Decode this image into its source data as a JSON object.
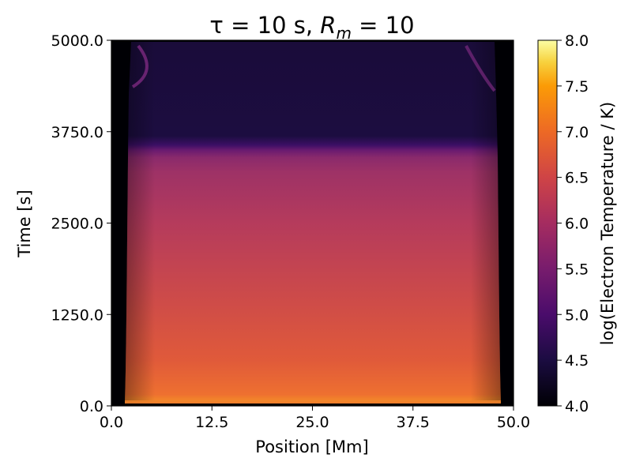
{
  "chart_data": {
    "type": "heatmap",
    "title": "τ = 10 s, R_m = 10",
    "title_parts": {
      "lead": "τ = 10 s, ",
      "var": "R",
      "sub": "m",
      "tail": " = 10"
    },
    "xlabel": "Position [Mm]",
    "ylabel": "Time [s]",
    "xlim": [
      0.0,
      50.0
    ],
    "ylim": [
      0.0,
      5000.0
    ],
    "x_ticks": [
      "0.0",
      "12.5",
      "25.0",
      "37.5",
      "50.0"
    ],
    "y_ticks": [
      "0.0",
      "1250.0",
      "2500.0",
      "3750.0",
      "5000.0"
    ],
    "colorbar": {
      "label": "log(Electron Temperature / K)",
      "range": [
        4.0,
        8.0
      ],
      "ticks": [
        "4.0",
        "4.5",
        "5.0",
        "5.5",
        "6.0",
        "6.5",
        "7.0",
        "7.5",
        "8.0"
      ],
      "colormap": "inferno"
    },
    "grid": false,
    "description_regions": [
      {
        "time_range": [
          0,
          50
        ],
        "value": 6.9
      },
      {
        "time_range": [
          50,
          3300
        ],
        "value_range": [
          6.6,
          6.0
        ]
      },
      {
        "time_range": [
          3300,
          3600
        ],
        "value_range": [
          6.0,
          4.7
        ]
      },
      {
        "time_range": [
          3600,
          5000
        ],
        "value": 4.5
      }
    ]
  }
}
